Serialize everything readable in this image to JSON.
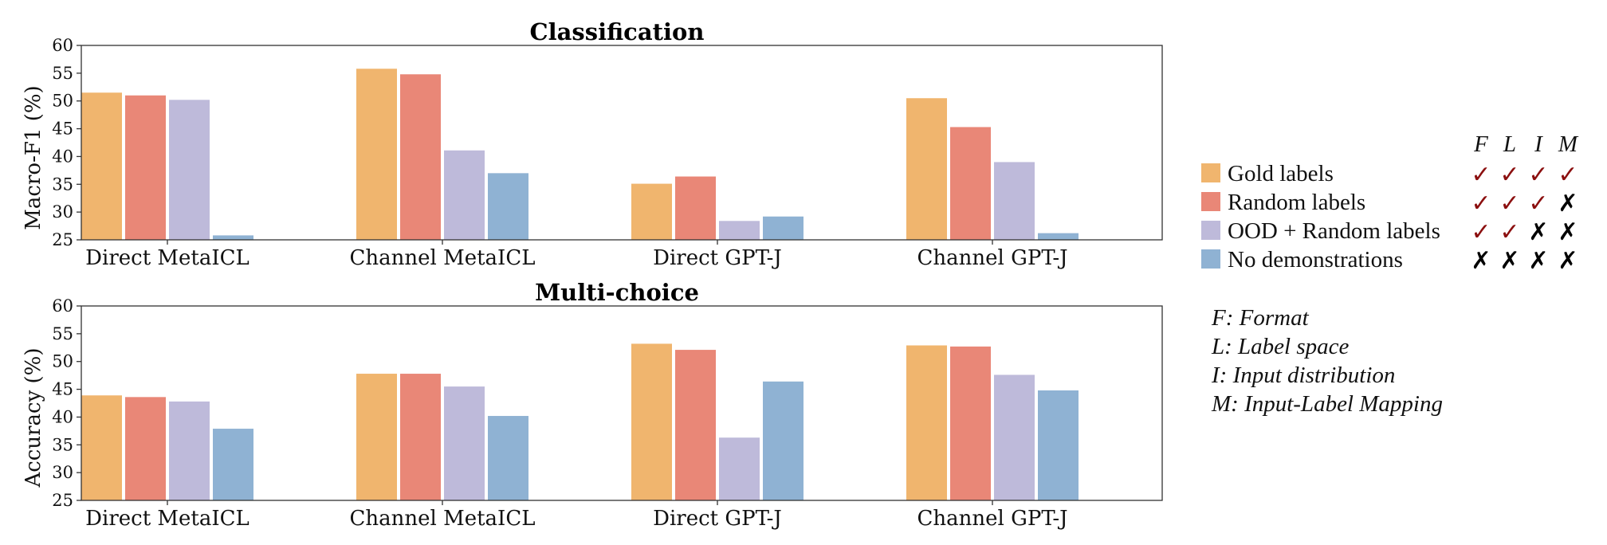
{
  "chart_data": [
    {
      "type": "bar",
      "title": "Classification",
      "ylabel": "Macro-F1 (%)",
      "xlabel": "",
      "ylim": [
        25,
        60
      ],
      "yticks": [
        25,
        30,
        35,
        40,
        45,
        50,
        55,
        60
      ],
      "grid": false,
      "categories": [
        "Direct MetaICL",
        "Channel MetaICL",
        "Direct GPT-J",
        "Channel GPT-J"
      ],
      "series": [
        {
          "name": "Gold labels",
          "values": [
            51.5,
            55.8,
            35.1,
            50.5
          ]
        },
        {
          "name": "Random labels",
          "values": [
            51.0,
            54.8,
            36.4,
            45.3
          ]
        },
        {
          "name": "OOD + Random labels",
          "values": [
            50.2,
            41.1,
            28.4,
            39.0
          ]
        },
        {
          "name": "No demonstrations",
          "values": [
            25.8,
            37.0,
            29.2,
            26.2
          ]
        }
      ]
    },
    {
      "type": "bar",
      "title": "Multi-choice",
      "ylabel": "Accuracy (%)",
      "xlabel": "",
      "ylim": [
        25,
        60
      ],
      "yticks": [
        25,
        30,
        35,
        40,
        45,
        50,
        55,
        60
      ],
      "grid": false,
      "categories": [
        "Direct MetaICL",
        "Channel MetaICL",
        "Direct GPT-J",
        "Channel GPT-J"
      ],
      "series": [
        {
          "name": "Gold labels",
          "values": [
            43.9,
            47.8,
            53.2,
            52.9
          ]
        },
        {
          "name": "Random labels",
          "values": [
            43.6,
            47.8,
            52.1,
            52.7
          ]
        },
        {
          "name": "OOD + Random labels",
          "values": [
            42.8,
            45.5,
            36.3,
            47.6
          ]
        },
        {
          "name": "No demonstrations",
          "values": [
            37.9,
            40.2,
            46.4,
            44.8
          ]
        }
      ]
    }
  ],
  "colors": [
    "#f0b56e",
    "#e98777",
    "#bebada",
    "#8fb2d3"
  ],
  "check_colors": {
    "check": "#8b0f0f",
    "cross": "#000000"
  },
  "legend": {
    "placement": "right",
    "header": [
      "F",
      "L",
      "I",
      "M"
    ],
    "entries": [
      {
        "label": "Gold labels",
        "marks": [
          "✓",
          "✓",
          "✓",
          "✓"
        ]
      },
      {
        "label": "Random labels",
        "marks": [
          "✓",
          "✓",
          "✓",
          "✗"
        ]
      },
      {
        "label": "OOD + Random labels",
        "marks": [
          "✓",
          "✓",
          "✗",
          "✗"
        ]
      },
      {
        "label": "No demonstrations",
        "marks": [
          "✗",
          "✗",
          "✗",
          "✗"
        ]
      }
    ]
  },
  "notes": [
    "F: Format",
    "L: Label space",
    "I: Input distribution",
    "M: Input-Label Mapping"
  ]
}
